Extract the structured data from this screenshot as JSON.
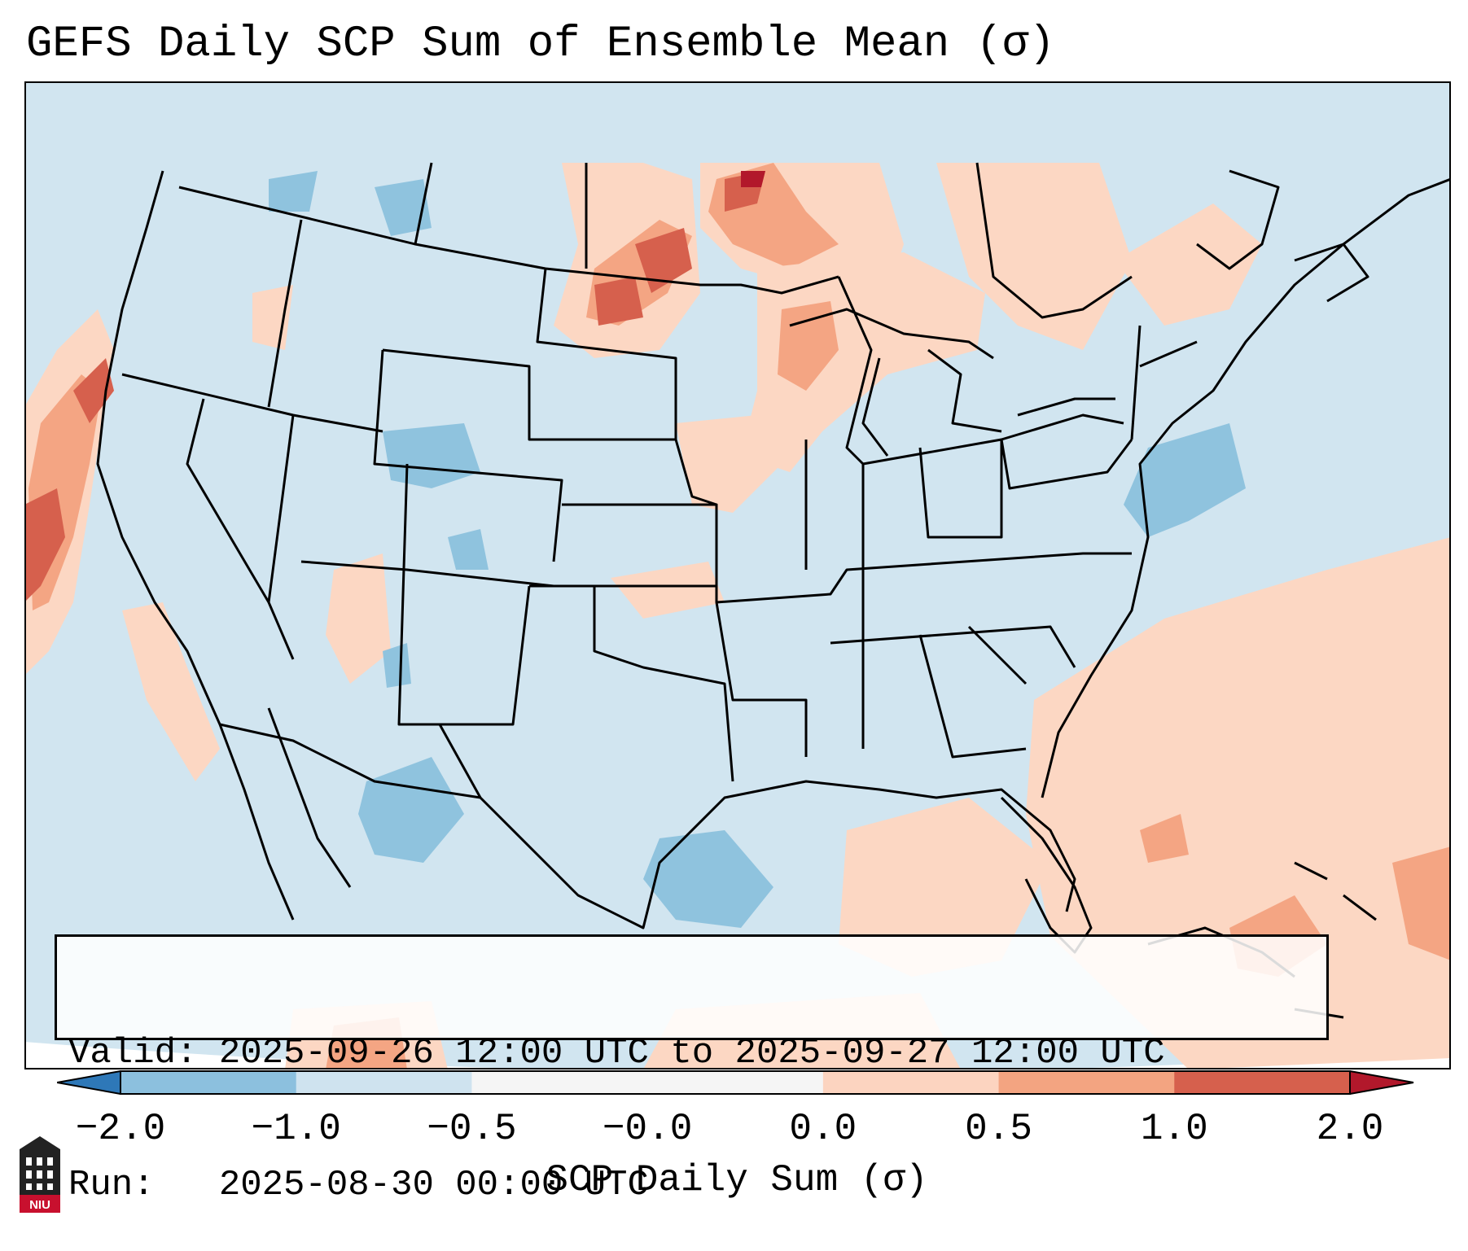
{
  "title": "GEFS Daily SCP Sum of Ensemble Mean (σ)",
  "info": {
    "valid_line": "Valid: 2025-09-26 12:00 UTC to 2025-09-27 12:00 UTC",
    "run_line": "Run:   2025-08-30 00:00 UTC"
  },
  "colorbar": {
    "label": "SCP Daily Sum (σ)",
    "ticks": [
      "−2.0",
      "−1.0",
      "−0.5",
      "−0.0",
      "0.0",
      "0.5",
      "1.0",
      "2.0"
    ],
    "colors": [
      "#3f8fc5",
      "#8cc0de",
      "#cfe3ef",
      "#f5f5f5",
      "#fcd4c0",
      "#f3a481",
      "#d6604d",
      "#b2182b"
    ],
    "under_color": "#2e78b8",
    "over_color": "#b2182b"
  },
  "map_colors": {
    "background": "#d1e5f0",
    "blue_light": "#8fc3de",
    "red_light": "#fcd7c3",
    "red_mid": "#f4a583",
    "red_strong": "#d6604d",
    "red_dark": "#b2182b"
  },
  "logo": {
    "text": "NIU",
    "color": "#c8102e"
  }
}
